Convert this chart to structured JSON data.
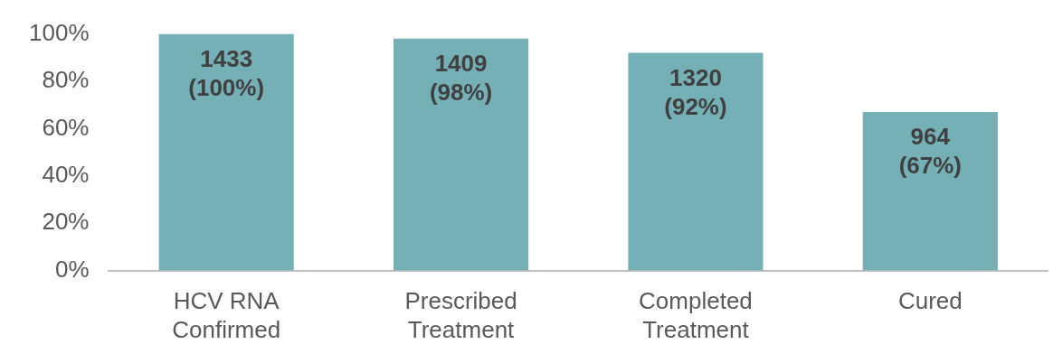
{
  "chart_data": {
    "type": "bar",
    "categories": [
      "HCV RNA\nConfirmed",
      "Prescribed\nTreatment",
      "Completed\nTreatment",
      "Cured"
    ],
    "values": [
      100,
      98,
      92,
      67
    ],
    "color": "#75b0b7",
    "value_labels": [
      "1433\n(100%)",
      "1409\n(98%)",
      "1320\n(92%)",
      "964\n(67%)"
    ],
    "ylim": [
      0,
      100
    ],
    "yticks": [
      {
        "value": 0,
        "label": "0%"
      },
      {
        "value": 20,
        "label": "20%"
      },
      {
        "value": 40,
        "label": "40%"
      },
      {
        "value": 60,
        "label": "60%"
      },
      {
        "value": 80,
        "label": "80%"
      },
      {
        "value": 100,
        "label": "100%"
      }
    ],
    "grid": false,
    "legend": false
  }
}
